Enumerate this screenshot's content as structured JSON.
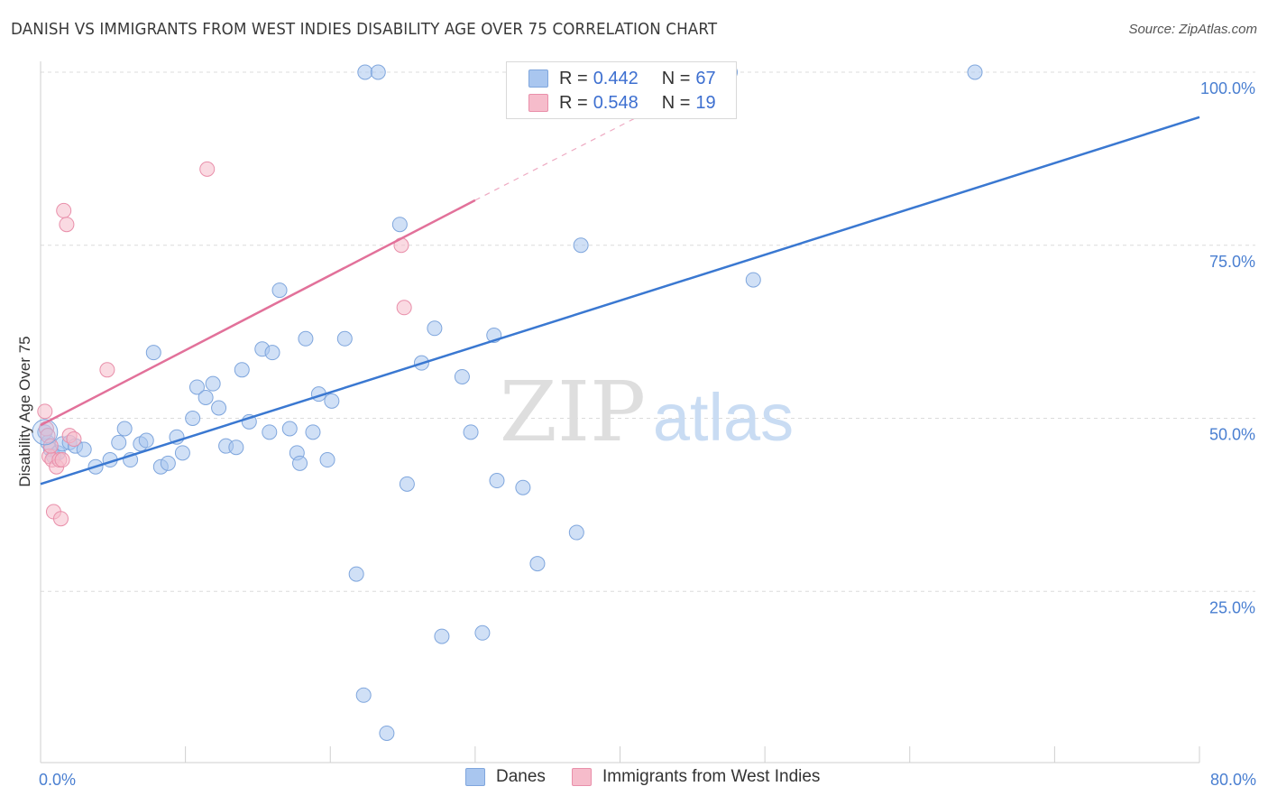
{
  "header": {
    "title": "DANISH VS IMMIGRANTS FROM WEST INDIES DISABILITY AGE OVER 75 CORRELATION CHART",
    "source": "Source: ZipAtlas.com"
  },
  "watermark": {
    "part1": "ZIP",
    "part2": "atlas"
  },
  "colors": {
    "danes_fill": "#a9c6ef",
    "danes_stroke": "#7fa6dd",
    "danes_line": "#3a78d1",
    "wi_fill": "#f6bccb",
    "wi_stroke": "#e98faa",
    "wi_line": "#e2719a",
    "grid": "#dcdcdc",
    "axis_label": "#4a7fd1"
  },
  "legend": {
    "rows": [
      {
        "r_label": "R = ",
        "r_value": "0.442",
        "n_label": "N = ",
        "n_value": "67",
        "color": "#a9c6ef"
      },
      {
        "r_label": "R = ",
        "r_value": "0.548",
        "n_label": "N = ",
        "n_value": "19",
        "color": "#f6bccb"
      }
    ]
  },
  "bottom_legend": [
    {
      "label": "Danes",
      "color": "#a9c6ef"
    },
    {
      "label": "Immigrants from West Indies",
      "color": "#f6bccb"
    }
  ],
  "chart_data": {
    "type": "scatter",
    "title": "DANISH VS IMMIGRANTS FROM WEST INDIES DISABILITY AGE OVER 75 CORRELATION CHART",
    "xlabel": "",
    "ylabel": "Disability Age Over 75",
    "xlim": [
      0,
      80
    ],
    "ylim": [
      0,
      105
    ],
    "x_tick_labels": [
      "0.0%",
      "80.0%"
    ],
    "y_ticks": [
      25,
      50,
      75,
      100
    ],
    "y_tick_labels": [
      "25.0%",
      "50.0%",
      "75.0%",
      "100.0%"
    ],
    "grid": true,
    "legend_position": "top-center",
    "series": [
      {
        "name": "Danes",
        "r": 0.442,
        "n": 67,
        "trend": {
          "x": [
            0,
            80
          ],
          "y": [
            40.5,
            93.5
          ]
        },
        "points": [
          [
            0.3,
            48.0
          ],
          [
            0.5,
            46.5
          ],
          [
            0.7,
            45.5
          ],
          [
            0.9,
            44.5
          ],
          [
            1.2,
            45.0
          ],
          [
            1.5,
            46.3
          ],
          [
            2.0,
            46.5
          ],
          [
            2.4,
            46.0
          ],
          [
            3.0,
            45.5
          ],
          [
            3.8,
            43.0
          ],
          [
            4.8,
            44.0
          ],
          [
            5.4,
            46.5
          ],
          [
            5.8,
            48.5
          ],
          [
            6.2,
            44.0
          ],
          [
            6.9,
            46.3
          ],
          [
            7.3,
            46.8
          ],
          [
            7.8,
            59.5
          ],
          [
            8.3,
            43.0
          ],
          [
            8.8,
            43.5
          ],
          [
            9.4,
            47.3
          ],
          [
            9.8,
            45.0
          ],
          [
            10.5,
            50.0
          ],
          [
            10.8,
            54.5
          ],
          [
            11.4,
            53.0
          ],
          [
            11.9,
            55.0
          ],
          [
            12.3,
            51.5
          ],
          [
            12.8,
            46.0
          ],
          [
            13.5,
            45.8
          ],
          [
            13.9,
            57.0
          ],
          [
            14.4,
            49.5
          ],
          [
            15.3,
            60.0
          ],
          [
            15.8,
            48.0
          ],
          [
            16.0,
            59.5
          ],
          [
            16.5,
            68.5
          ],
          [
            17.2,
            48.5
          ],
          [
            17.7,
            45.0
          ],
          [
            17.9,
            43.5
          ],
          [
            18.3,
            61.5
          ],
          [
            18.8,
            48.0
          ],
          [
            19.2,
            53.5
          ],
          [
            19.8,
            44.0
          ],
          [
            20.1,
            52.5
          ],
          [
            21.0,
            61.5
          ],
          [
            21.8,
            27.5
          ],
          [
            22.3,
            10.0
          ],
          [
            22.4,
            100.0
          ],
          [
            23.3,
            100.0
          ],
          [
            23.9,
            4.5
          ],
          [
            24.8,
            78.0
          ],
          [
            25.3,
            40.5
          ],
          [
            26.3,
            58.0
          ],
          [
            27.2,
            63.0
          ],
          [
            27.7,
            18.5
          ],
          [
            29.1,
            56.0
          ],
          [
            29.7,
            48.0
          ],
          [
            30.5,
            19.0
          ],
          [
            31.3,
            62.0
          ],
          [
            31.5,
            41.0
          ],
          [
            33.3,
            40.0
          ],
          [
            34.3,
            29.0
          ],
          [
            37.0,
            33.5
          ],
          [
            37.3,
            75.0
          ],
          [
            39.3,
            100.0
          ],
          [
            47.0,
            100.0
          ],
          [
            47.6,
            100.0
          ],
          [
            49.2,
            70.0
          ],
          [
            64.5,
            100.0
          ]
        ]
      },
      {
        "name": "Immigrants from West Indies",
        "r": 0.548,
        "n": 19,
        "trend": {
          "x": [
            0,
            30
          ],
          "y": [
            49.0,
            81.5
          ]
        },
        "trend_dashed": {
          "x": [
            30,
            43.5
          ],
          "y": [
            81.5,
            96.0
          ]
        },
        "points": [
          [
            0.3,
            51.0
          ],
          [
            0.4,
            48.5
          ],
          [
            0.5,
            47.5
          ],
          [
            0.6,
            44.5
          ],
          [
            0.8,
            44.0
          ],
          [
            0.9,
            36.5
          ],
          [
            1.1,
            43.0
          ],
          [
            1.3,
            44.0
          ],
          [
            1.4,
            35.5
          ],
          [
            1.6,
            80.0
          ],
          [
            1.8,
            78.0
          ],
          [
            2.0,
            47.5
          ],
          [
            2.3,
            47.0
          ],
          [
            4.6,
            57.0
          ],
          [
            11.5,
            86.0
          ],
          [
            24.9,
            75.0
          ],
          [
            25.1,
            66.0
          ],
          [
            1.5,
            44.0
          ],
          [
            0.7,
            46.0
          ]
        ]
      }
    ]
  }
}
